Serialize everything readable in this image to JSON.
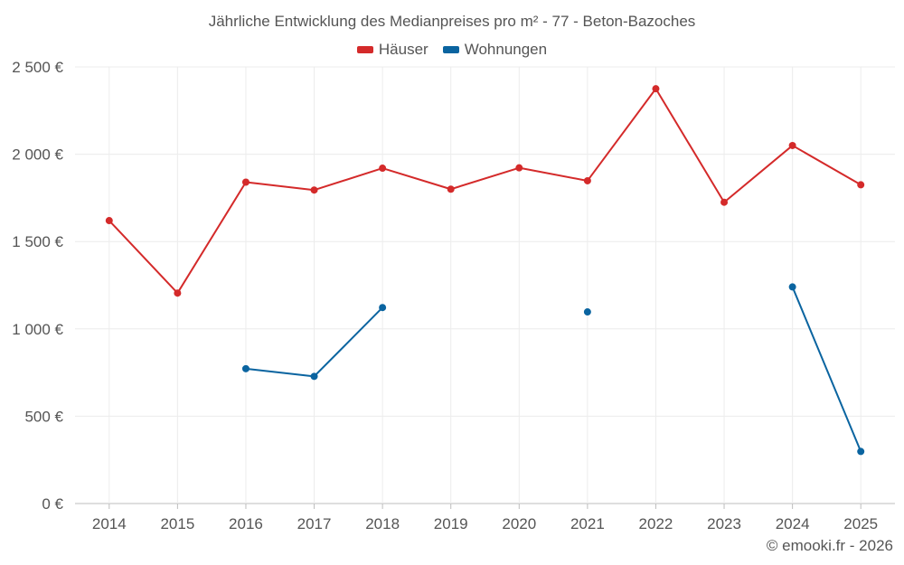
{
  "chart_data": {
    "type": "line",
    "title": "Jährliche Entwicklung des Medianpreises pro m² - 77 - Beton-Bazoches",
    "categories": [
      "2014",
      "2015",
      "2016",
      "2017",
      "2018",
      "2019",
      "2020",
      "2021",
      "2022",
      "2023",
      "2024",
      "2025"
    ],
    "series": [
      {
        "name": "Häuser",
        "color": "#d42a2a",
        "values": [
          1620,
          1205,
          1840,
          1795,
          1920,
          1800,
          1922,
          1848,
          2375,
          1725,
          2050,
          1825
        ]
      },
      {
        "name": "Wohnungen",
        "color": "#0a64a0",
        "values": [
          null,
          null,
          772,
          728,
          1122,
          null,
          null,
          1097,
          null,
          null,
          1240,
          298
        ]
      }
    ],
    "ylim": [
      0,
      2500
    ],
    "y_ticks": [
      0,
      500,
      1000,
      1500,
      2000,
      2500
    ],
    "y_tick_labels": [
      "0 €",
      "500 €",
      "1 000 €",
      "1 500 €",
      "2 000 €",
      "2 500 €"
    ],
    "grid": true,
    "legend_position": "top-center",
    "xlabel": "",
    "ylabel": ""
  },
  "footer": {
    "credit": "© emooki.fr - 2026"
  }
}
